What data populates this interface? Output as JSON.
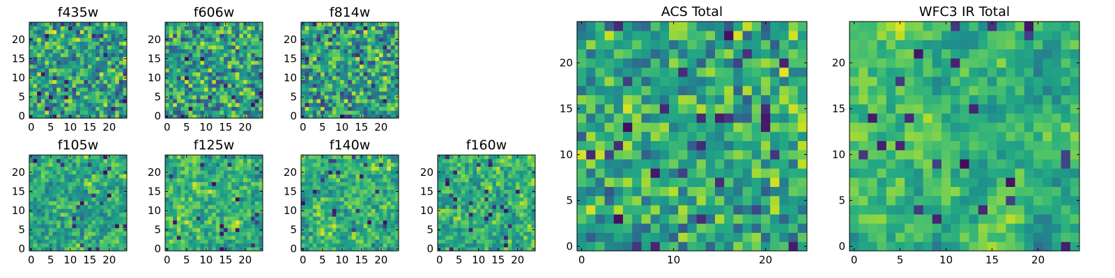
{
  "chart_data": [
    {
      "type": "heatmap",
      "title": "f435w",
      "xticks": [
        "0",
        "5",
        "10",
        "15",
        "20"
      ],
      "yticks": [
        "0",
        "5",
        "10",
        "15",
        "20"
      ],
      "xlim": [
        -0.5,
        24.5
      ],
      "ylim": [
        -0.5,
        24.5
      ],
      "colormap": "viridis",
      "seed": 11,
      "smooth": 0,
      "noise": 0.55
    },
    {
      "type": "heatmap",
      "title": "f606w",
      "xticks": [
        "0",
        "5",
        "10",
        "15",
        "20"
      ],
      "yticks": [
        "0",
        "5",
        "10",
        "15",
        "20"
      ],
      "xlim": [
        -0.5,
        24.5
      ],
      "ylim": [
        -0.5,
        24.5
      ],
      "colormap": "viridis",
      "seed": 23,
      "smooth": 0,
      "noise": 0.55
    },
    {
      "type": "heatmap",
      "title": "f814w",
      "xticks": [
        "0",
        "5",
        "10",
        "15",
        "20"
      ],
      "yticks": [
        "0",
        "5",
        "10",
        "15",
        "20"
      ],
      "xlim": [
        -0.5,
        24.5
      ],
      "ylim": [
        -0.5,
        24.5
      ],
      "colormap": "viridis",
      "seed": 37,
      "smooth": 0,
      "noise": 0.55
    },
    {
      "type": "heatmap",
      "title": "f105w",
      "xticks": [
        "0",
        "5",
        "10",
        "15",
        "20"
      ],
      "yticks": [
        "0",
        "5",
        "10",
        "15",
        "20"
      ],
      "xlim": [
        -0.5,
        24.5
      ],
      "ylim": [
        -0.5,
        24.5
      ],
      "colormap": "viridis",
      "seed": 41,
      "smooth": 1,
      "noise": 0.35
    },
    {
      "type": "heatmap",
      "title": "f125w",
      "xticks": [
        "0",
        "5",
        "10",
        "15",
        "20"
      ],
      "yticks": [
        "0",
        "5",
        "10",
        "15",
        "20"
      ],
      "xlim": [
        -0.5,
        24.5
      ],
      "ylim": [
        -0.5,
        24.5
      ],
      "colormap": "viridis",
      "seed": 53,
      "smooth": 1,
      "noise": 0.35
    },
    {
      "type": "heatmap",
      "title": "f140w",
      "xticks": [
        "0",
        "5",
        "10",
        "15",
        "20"
      ],
      "yticks": [
        "0",
        "5",
        "10",
        "15",
        "20"
      ],
      "xlim": [
        -0.5,
        24.5
      ],
      "ylim": [
        -0.5,
        24.5
      ],
      "colormap": "viridis",
      "seed": 67,
      "smooth": 1,
      "noise": 0.35
    },
    {
      "type": "heatmap",
      "title": "f160w",
      "xticks": [
        "0",
        "5",
        "10",
        "15",
        "20"
      ],
      "yticks": [
        "0",
        "5",
        "10",
        "15",
        "20"
      ],
      "xlim": [
        -0.5,
        24.5
      ],
      "ylim": [
        -0.5,
        24.5
      ],
      "colormap": "viridis",
      "seed": 79,
      "smooth": 1,
      "noise": 0.35
    },
    {
      "type": "heatmap",
      "title": "ACS Total",
      "xticks": [
        "0",
        "10",
        "20"
      ],
      "yticks": [
        "0",
        "5",
        "10",
        "15",
        "20"
      ],
      "xlim": [
        -0.5,
        24.5
      ],
      "ylim": [
        -0.5,
        24.5
      ],
      "colormap": "viridis",
      "seed": 97,
      "smooth": 0,
      "noise": 0.4
    },
    {
      "type": "heatmap",
      "title": "WFC3 IR Total",
      "xticks": [
        "0",
        "5",
        "10",
        "15",
        "20"
      ],
      "yticks": [
        "0",
        "5",
        "10",
        "15",
        "20"
      ],
      "xlim": [
        -0.5,
        24.5
      ],
      "ylim": [
        -0.5,
        24.5
      ],
      "colormap": "viridis",
      "seed": 131,
      "smooth": 2,
      "noise": 0.25
    }
  ]
}
